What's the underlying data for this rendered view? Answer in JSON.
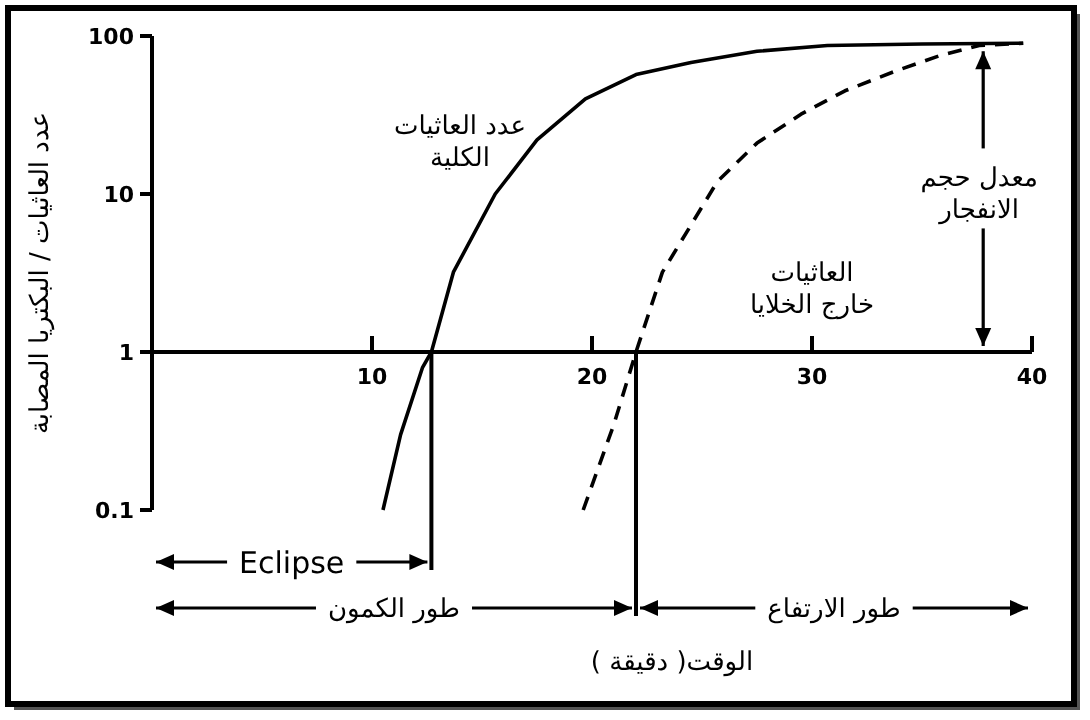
{
  "chart_data": {
    "type": "line",
    "xlabel": "الوقت( دقيقة )",
    "ylabel": "عدد العاثيات / البكتريا المصابة",
    "log": "y",
    "xlim": [
      0,
      40
    ],
    "xticks": [
      {
        "value": 0,
        "label": null
      },
      10,
      20,
      30,
      40
    ],
    "ylim": [
      0.1,
      100
    ],
    "yticks": [
      0.1,
      1,
      10,
      100
    ],
    "grid": false,
    "marker": "none",
    "series": [
      {
        "color": "#000000",
        "line_style": "solid",
        "x": [
          10.5,
          11.3,
          12.3,
          12.7,
          13.7,
          15.6,
          17.5,
          19.7,
          22,
          24.5,
          27.5,
          30.7,
          35,
          39.6
        ],
        "values": [
          0.1,
          0.3,
          0.8,
          1,
          3.2,
          10,
          22,
          40,
          57,
          68,
          80,
          87,
          89,
          90
        ]
      },
      {
        "color": "#000000",
        "line_style": "dashed",
        "x": [
          19.6,
          21,
          22,
          23.2,
          25.7,
          27.5,
          29.5,
          31.5,
          33.8,
          35.8,
          37.6,
          39.6
        ],
        "values": [
          0.1,
          0.35,
          1,
          3.2,
          12,
          21,
          32,
          45,
          60,
          75,
          87,
          90
        ]
      }
    ],
    "ref_lines": [
      {
        "axis": "x",
        "value": 12.7,
        "color": "#000000"
      },
      {
        "axis": "x",
        "value": 22,
        "color": "#000000"
      }
    ],
    "annotations": [
      "عدد العاثيات\nالكلية",
      "العاثيات\nخارج الخلايا",
      "معدل حجم\nالانفجار",
      "Eclipse",
      "طور الكمون",
      "طور الارتفاع"
    ]
  }
}
